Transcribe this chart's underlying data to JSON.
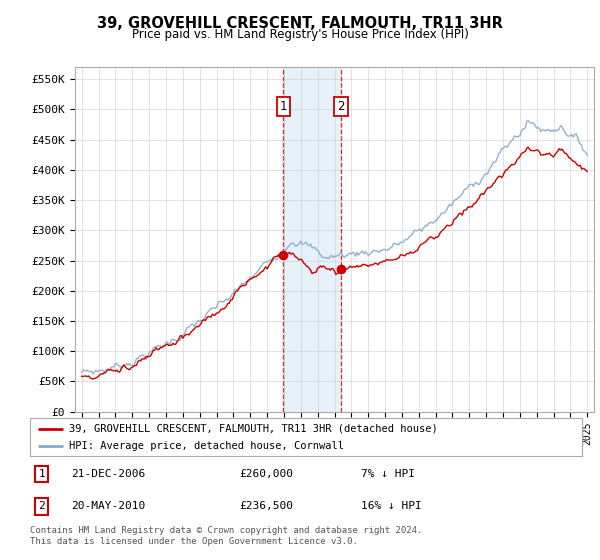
{
  "title": "39, GROVEHILL CRESCENT, FALMOUTH, TR11 3HR",
  "subtitle": "Price paid vs. HM Land Registry's House Price Index (HPI)",
  "ylim": [
    0,
    570000
  ],
  "yticks": [
    0,
    50000,
    100000,
    150000,
    200000,
    250000,
    300000,
    350000,
    400000,
    450000,
    500000,
    550000
  ],
  "ytick_labels": [
    "£0",
    "£50K",
    "£100K",
    "£150K",
    "£200K",
    "£250K",
    "£300K",
    "£350K",
    "£400K",
    "£450K",
    "£500K",
    "£550K"
  ],
  "xmin": 1995,
  "xmax": 2025,
  "sale1_date": 2006.97,
  "sale1_price": 260000,
  "sale2_date": 2010.38,
  "sale2_price": 236500,
  "sale_color": "#cc0000",
  "hpi_color": "#88aacc",
  "highlight_color": "#d6e8f5",
  "highlight_alpha": 0.6,
  "legend_label_sale": "39, GROVEHILL CRESCENT, FALMOUTH, TR11 3HR (detached house)",
  "legend_label_hpi": "HPI: Average price, detached house, Cornwall",
  "annotation1": [
    "1",
    "21-DEC-2006",
    "£260,000",
    "7% ↓ HPI"
  ],
  "annotation2": [
    "2",
    "20-MAY-2010",
    "£236,500",
    "16% ↓ HPI"
  ],
  "footer": "Contains HM Land Registry data © Crown copyright and database right 2024.\nThis data is licensed under the Open Government Licence v3.0.",
  "background_color": "#ffffff",
  "grid_color": "#cccccc"
}
